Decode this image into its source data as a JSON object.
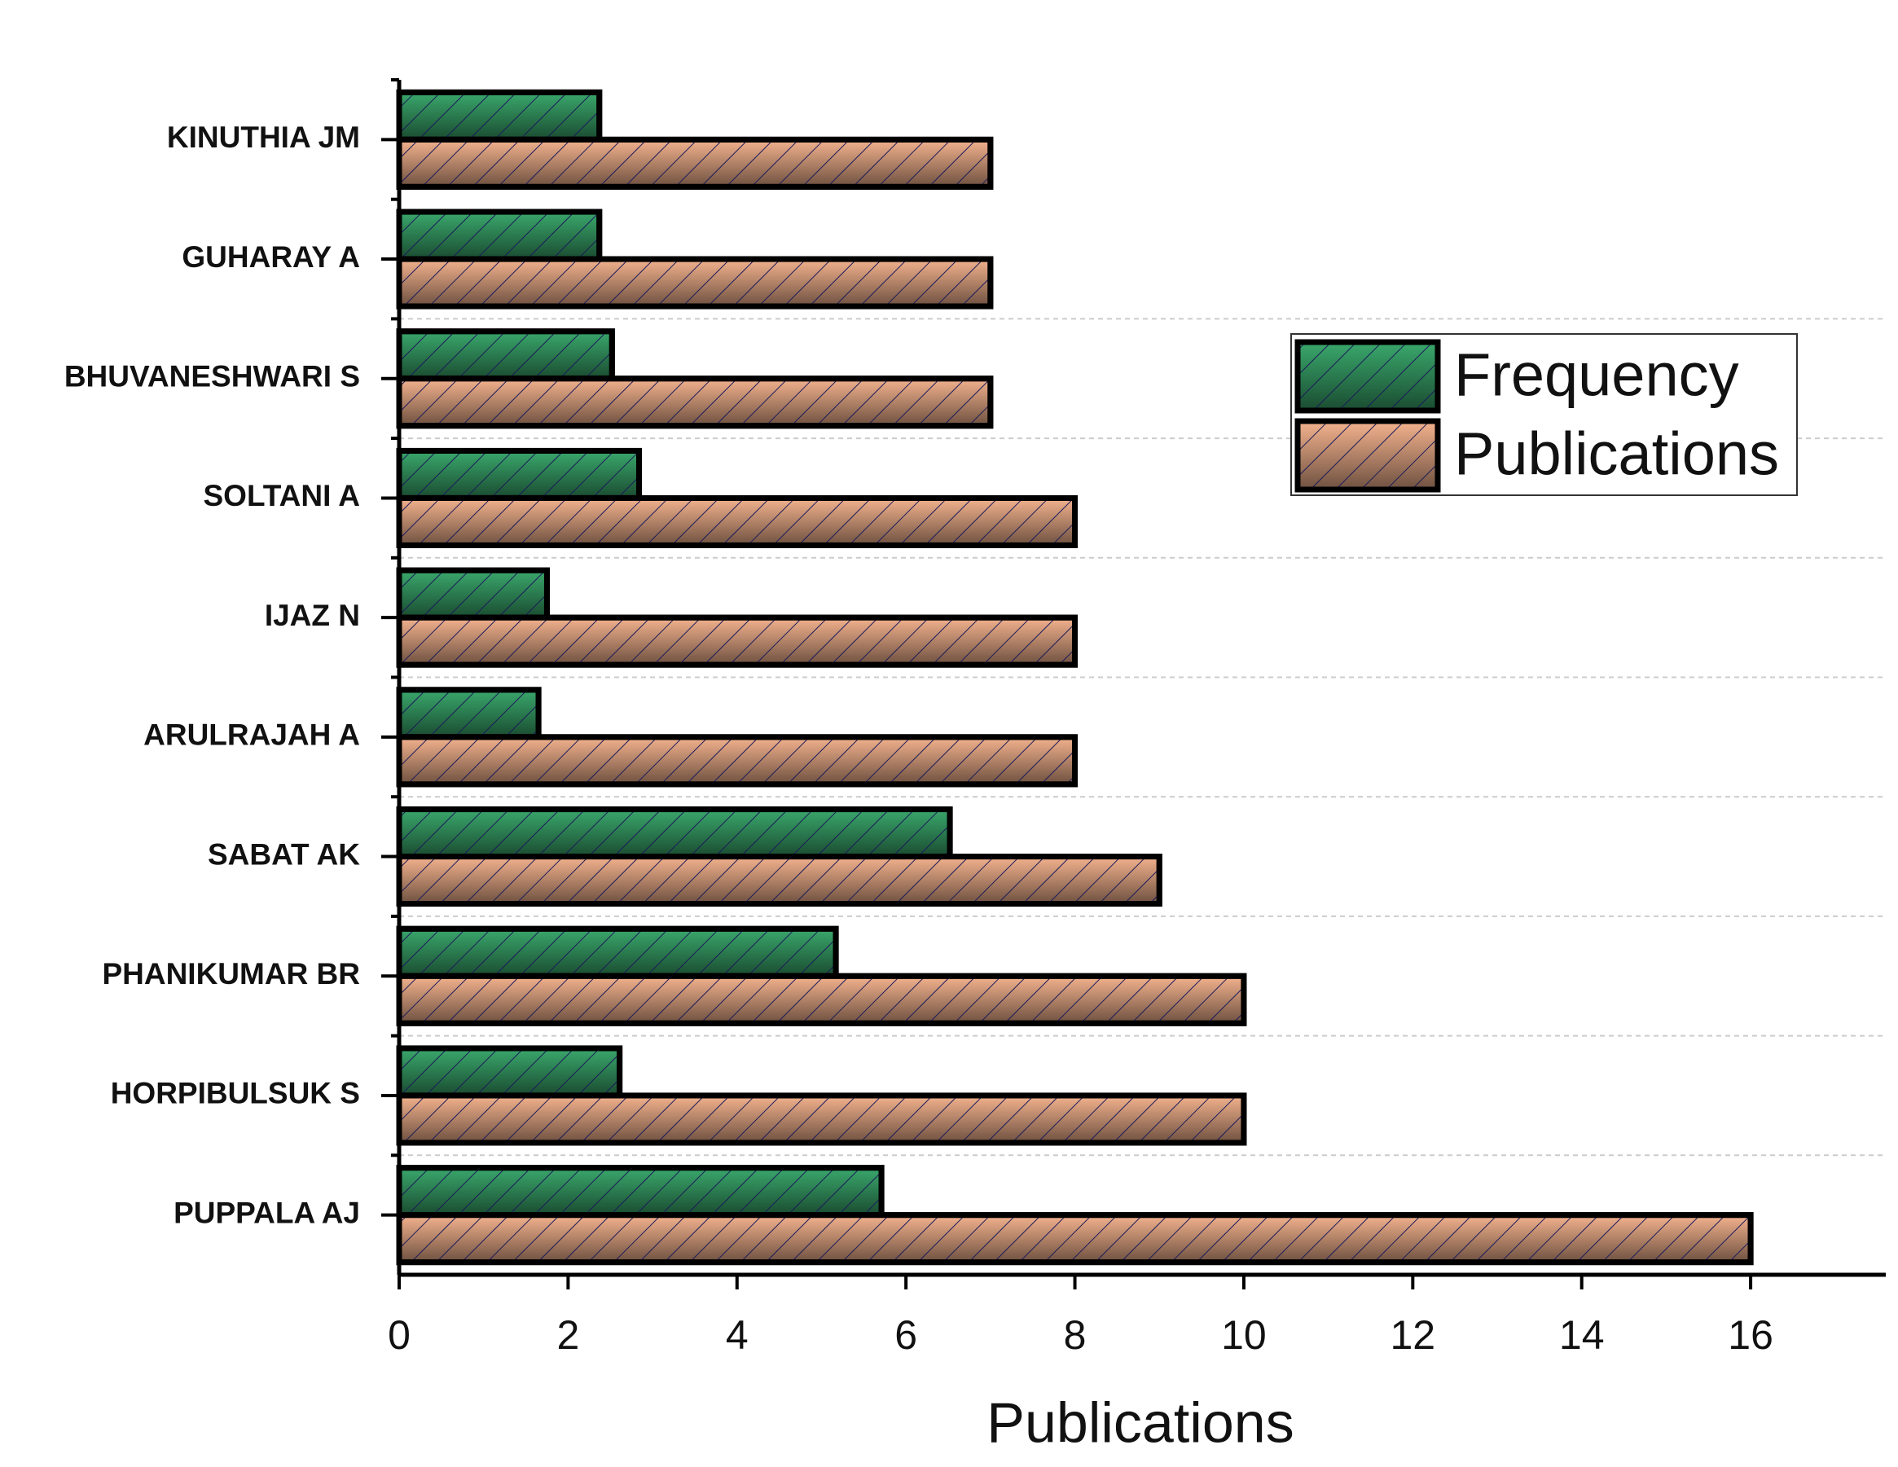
{
  "chart_data": {
    "type": "bar",
    "orientation": "horizontal",
    "x_label": "Publications",
    "categories": [
      "KINUTHIA JM",
      "GUHARAY A",
      "BHUVANESHWARI S",
      "SOLTANI A",
      "IJAZ N",
      "ARULRAJAH A",
      "SABAT AK",
      "PHANIKUMAR BR",
      "HORPIBULSUK S",
      "PUPPALA AJ"
    ],
    "series": [
      {
        "name": "Frequency",
        "color": "#3aa86c",
        "values": [
          2.37,
          2.37,
          2.52,
          2.84,
          1.75,
          1.65,
          6.52,
          5.17,
          2.61,
          5.71
        ]
      },
      {
        "name": "Publications",
        "color": "#f4b38e",
        "values": [
          7,
          7,
          7,
          8,
          8,
          8,
          9,
          10,
          10,
          16
        ]
      }
    ],
    "xlim": [
      0,
      17.6
    ],
    "xticks": [
      0,
      2,
      4,
      6,
      8,
      10,
      12,
      14,
      16
    ],
    "hatch": true,
    "legend": "upper right"
  }
}
